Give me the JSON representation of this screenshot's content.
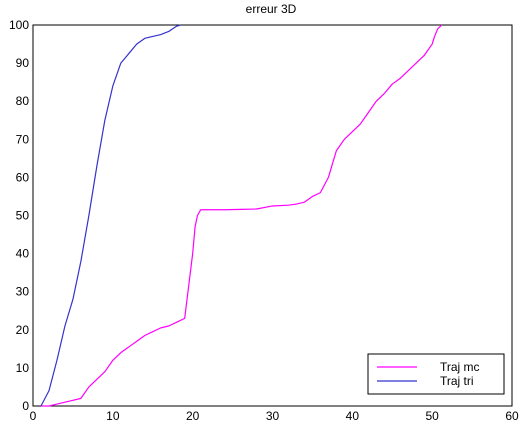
{
  "chart_data": {
    "type": "line",
    "title": "erreur 3D",
    "xlabel": "",
    "ylabel": "",
    "xlim": [
      0,
      60
    ],
    "ylim": [
      0,
      100
    ],
    "xticks": [
      0,
      10,
      20,
      30,
      40,
      50,
      60
    ],
    "yticks": [
      0,
      10,
      20,
      30,
      40,
      50,
      60,
      70,
      80,
      90,
      100
    ],
    "xtick_labels": [
      "0",
      "10",
      "20",
      "30",
      "40",
      "50",
      "60"
    ],
    "ytick_labels": [
      "0",
      "10",
      "20",
      "30",
      "40",
      "50",
      "60",
      "70",
      "80",
      "90",
      "100"
    ],
    "grid": false,
    "legend_position": "bottom-right",
    "series": [
      {
        "name": "Traj mc",
        "color": "#ff00ff",
        "x": [
          1,
          2,
          3,
          4,
          5,
          6,
          7,
          8,
          9,
          10,
          11,
          12,
          13,
          14,
          15,
          16,
          17,
          18,
          19,
          20,
          20.3,
          20.6,
          21,
          22,
          24,
          26,
          28,
          30,
          32,
          33,
          34,
          35,
          36,
          37,
          38,
          39,
          40,
          41,
          42,
          43,
          44,
          45,
          46,
          47,
          48,
          49,
          50,
          50.3,
          50.7,
          51.2
        ],
        "y": [
          0,
          0,
          0.5,
          1,
          1.5,
          2,
          5,
          7,
          9,
          12,
          14,
          15.5,
          17,
          18.5,
          19.5,
          20.5,
          21,
          22,
          23,
          40,
          47,
          50,
          51.5,
          51.5,
          51.5,
          51.6,
          51.7,
          52.5,
          52.7,
          53,
          53.5,
          55,
          56,
          60,
          67,
          70,
          72,
          74,
          77,
          80,
          82,
          84.5,
          86,
          88,
          90,
          92,
          95,
          97,
          99,
          100
        ]
      },
      {
        "name": "Traj tri",
        "color": "#3333cc",
        "x": [
          1,
          2,
          3,
          4,
          5,
          6,
          7,
          8,
          9,
          10,
          11,
          12,
          13,
          14,
          15,
          16,
          17,
          17.5,
          18,
          18.5
        ],
        "y": [
          0,
          4,
          12,
          21,
          28,
          38,
          50,
          63,
          75,
          84,
          90,
          92.5,
          95,
          96.5,
          97,
          97.5,
          98.3,
          99,
          99.7,
          100
        ]
      }
    ]
  }
}
